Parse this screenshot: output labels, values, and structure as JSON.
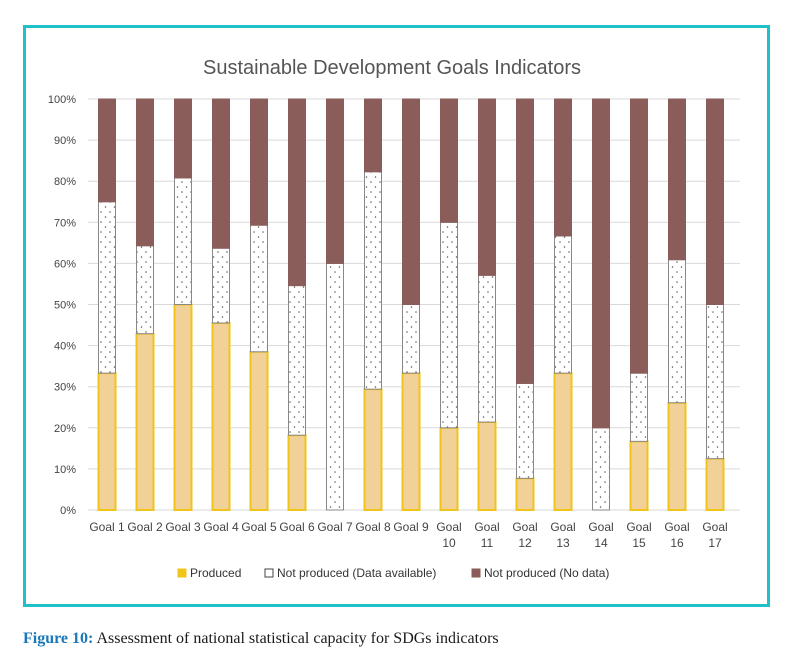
{
  "chart_data": {
    "type": "bar",
    "stacked": true,
    "title": "Sustainable Development Goals Indicators",
    "categories": [
      "Goal 1",
      "Goal 2",
      "Goal 3",
      "Goal 4",
      "Goal 5",
      "Goal 6",
      "Goal 7",
      "Goal 8",
      "Goal 9",
      "Goal 10",
      "Goal 11",
      "Goal 12",
      "Goal 13",
      "Goal 14",
      "Goal 15",
      "Goal 16",
      "Goal 17"
    ],
    "yticks": [
      "0%",
      "10%",
      "20%",
      "30%",
      "40%",
      "50%",
      "60%",
      "70%",
      "80%",
      "90%",
      "100%"
    ],
    "ylim": [
      0,
      100
    ],
    "xlabel": "",
    "ylabel": "",
    "legend_position": "bottom",
    "series": [
      {
        "name": "Produced",
        "values": [
          33.3,
          42.9,
          50,
          45.5,
          38.5,
          18.2,
          0,
          29.4,
          33.3,
          20,
          21.4,
          7.7,
          33.3,
          0,
          16.7,
          26.1,
          12.5
        ],
        "color": "#f2d198",
        "stroke": "#f0c419"
      },
      {
        "name": "Not produced (Data available)",
        "values": [
          41.7,
          21.4,
          30.8,
          18.2,
          30.8,
          36.4,
          60,
          52.9,
          16.7,
          50,
          35.7,
          23.1,
          33.4,
          20,
          16.6,
          34.8,
          37.5
        ],
        "color": "#ffffff",
        "stroke": "#888888"
      },
      {
        "name": "Not produced (No data)",
        "values": [
          25,
          35.7,
          19.2,
          36.3,
          30.7,
          45.4,
          40,
          17.7,
          50,
          30,
          42.9,
          69.2,
          33.3,
          80,
          66.7,
          39.1,
          50
        ],
        "color": "#8a5c5a",
        "stroke": "#8a5c5a"
      }
    ]
  },
  "caption": {
    "label": "Figure 10:",
    "text": "Assessment of national statistical capacity for SDGs indicators"
  }
}
